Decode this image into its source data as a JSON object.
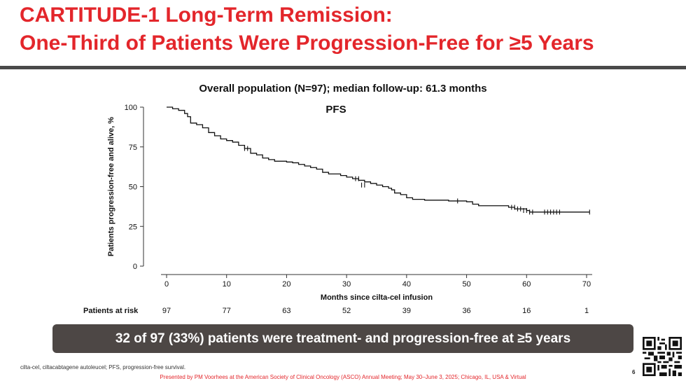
{
  "title": {
    "line1": "CARTITUDE-1 Long-Term Remission:",
    "line2": "One-Third of Patients Were Progression-Free for ≥5 Years"
  },
  "subtitle": "Overall population (N=97); median follow-up: 61.3 months",
  "banner": "32 of 97 (33%) patients were treatment- and progression-free at ≥5 years",
  "footnote": "cilta-cel, ciltacabtagene autoleucel; PFS, progression-free survival.",
  "page_number": "6",
  "presenter": "Presented by PM Voorhees at the American Society of Clinical Oncology (ASCO) Annual Meeting; May 30–June 3, 2025; Chicago, IL, USA & Virtual",
  "colors": {
    "title": "#e3262b",
    "banner": "#4d4745",
    "rule": "#4a4a4a"
  },
  "icons": {
    "qr": "qr-code-icon"
  },
  "chart_data": {
    "type": "line",
    "title": "PFS",
    "xlabel": "Months since cilta-cel infusion",
    "ylabel": "Patients progression-free and alive, %",
    "xlim": [
      0,
      70
    ],
    "ylim": [
      0,
      100
    ],
    "x_ticks": [
      0,
      10,
      20,
      30,
      40,
      50,
      60,
      70
    ],
    "y_ticks": [
      0,
      25,
      50,
      75,
      100
    ],
    "grid": false,
    "series": [
      {
        "name": "PFS",
        "step": true,
        "points": [
          [
            0,
            100
          ],
          [
            1,
            99
          ],
          [
            2,
            98
          ],
          [
            3,
            96
          ],
          [
            3.5,
            94
          ],
          [
            4,
            90
          ],
          [
            5,
            89
          ],
          [
            6,
            87
          ],
          [
            7,
            84
          ],
          [
            8,
            82
          ],
          [
            9,
            80
          ],
          [
            10,
            79
          ],
          [
            11,
            78
          ],
          [
            12,
            76
          ],
          [
            13,
            74
          ],
          [
            14,
            71
          ],
          [
            15,
            70
          ],
          [
            16,
            68
          ],
          [
            17,
            67
          ],
          [
            18,
            66
          ],
          [
            20,
            65.5
          ],
          [
            21,
            65
          ],
          [
            22,
            64
          ],
          [
            23,
            63
          ],
          [
            24,
            62
          ],
          [
            25,
            61
          ],
          [
            26,
            59
          ],
          [
            27,
            58
          ],
          [
            29,
            57
          ],
          [
            30,
            56
          ],
          [
            31,
            55
          ],
          [
            32,
            54
          ],
          [
            33,
            53
          ],
          [
            34,
            52
          ],
          [
            35,
            51
          ],
          [
            36,
            50
          ],
          [
            37,
            49
          ],
          [
            37.5,
            48
          ],
          [
            38,
            46
          ],
          [
            39,
            45
          ],
          [
            40,
            43
          ],
          [
            41,
            42
          ],
          [
            42,
            42
          ],
          [
            43,
            41.5
          ],
          [
            47,
            41
          ],
          [
            50,
            40.5
          ],
          [
            51,
            39
          ],
          [
            52,
            38
          ],
          [
            53,
            38
          ],
          [
            56,
            38
          ],
          [
            57,
            37
          ],
          [
            58,
            36
          ],
          [
            60,
            35
          ],
          [
            60.5,
            34
          ],
          [
            61,
            34
          ],
          [
            70.5,
            34
          ]
        ],
        "censored": [
          [
            13,
            74
          ],
          [
            13.5,
            74
          ],
          [
            31.5,
            55
          ],
          [
            32,
            55
          ],
          [
            32.5,
            51
          ],
          [
            33,
            51
          ],
          [
            48.5,
            41
          ],
          [
            57.5,
            37
          ],
          [
            58,
            37
          ],
          [
            58.5,
            36
          ],
          [
            59,
            36
          ],
          [
            59.5,
            35
          ],
          [
            60,
            35
          ],
          [
            60.5,
            34
          ],
          [
            61,
            34
          ],
          [
            63,
            34
          ],
          [
            63.5,
            34
          ],
          [
            64,
            34
          ],
          [
            64.5,
            34
          ],
          [
            65,
            34
          ],
          [
            65.5,
            34
          ],
          [
            70.5,
            34
          ]
        ]
      }
    ],
    "at_risk": {
      "label": "Patients at risk",
      "times": [
        0,
        10,
        20,
        30,
        40,
        50,
        60,
        70
      ],
      "values": [
        97,
        77,
        63,
        52,
        39,
        36,
        16,
        1
      ]
    }
  }
}
